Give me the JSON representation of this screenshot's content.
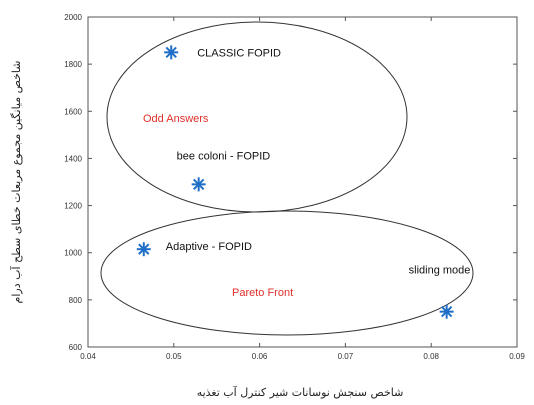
{
  "chart_data": {
    "type": "scatter",
    "title": "",
    "xlabel": "شاخص سنجش نوسانات شیر کنترل آب تغذیه",
    "ylabel": "شاخص میانگین مجموع مربعات خطای سطح آب درام",
    "xlim": [
      0.04,
      0.09
    ],
    "ylim": [
      600,
      2000
    ],
    "x_ticks": [
      "0.04",
      "0.05",
      "0.06",
      "0.07",
      "0.08",
      "0.09"
    ],
    "y_ticks": [
      "600",
      "800",
      "1000",
      "1200",
      "1400",
      "1600",
      "1800",
      "2000"
    ],
    "grid": false,
    "marker": "asterisk",
    "marker_color": "#1f6fc8",
    "points": [
      {
        "label": "CLASSIC FOPID",
        "x": 0.0497,
        "y": 1850
      },
      {
        "label": "bee coloni - FOPID",
        "x": 0.0529,
        "y": 1290
      },
      {
        "label": "Adaptive - FOPID",
        "x": 0.0465,
        "y": 1015
      },
      {
        "label": "sliding mode",
        "x": 0.0818,
        "y": 750
      }
    ],
    "regions": [
      {
        "label": "Odd Answers",
        "color": "#e0302a"
      },
      {
        "label": "Pareto Front",
        "color": "#e0302a"
      }
    ]
  }
}
